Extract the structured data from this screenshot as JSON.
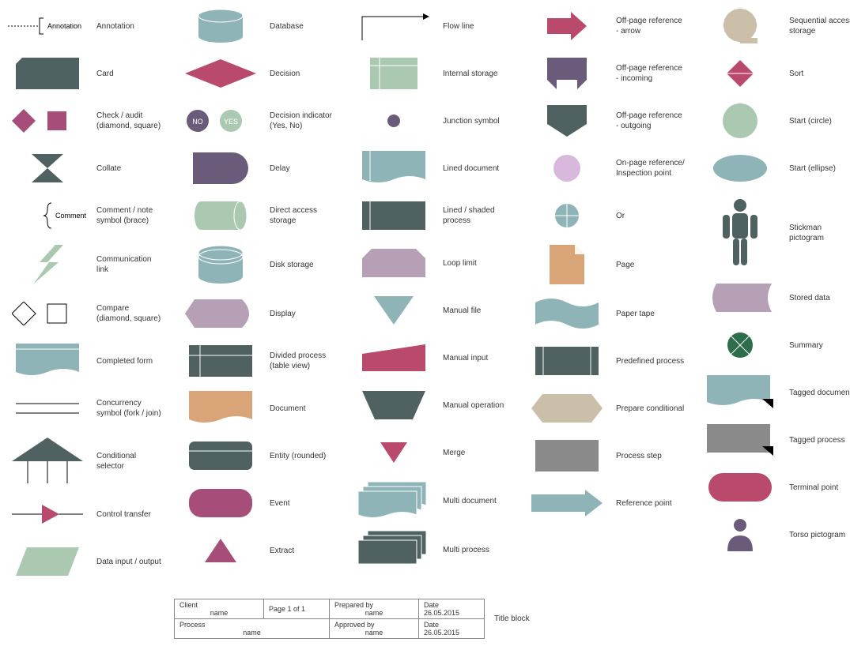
{
  "colors": {
    "darkgreen": "#4f6160",
    "teal": "#8fb4b7",
    "lightgreen": "#abc9b0",
    "magenta": "#a64d79",
    "crimson": "#b94a6b",
    "purple": "#6b5b7b",
    "mauve": "#b6a0b6",
    "tan": "#cbbfa9",
    "orange": "#d9a477",
    "grey": "#8a8a8a",
    "black": "#000",
    "deepgreen": "#2c6e49",
    "lilac": "#d8b8dd",
    "brown": "#8b5e3c"
  },
  "columns": [
    [
      {
        "label": "Annotation",
        "shape": "annotation"
      },
      {
        "label": "Card",
        "shape": "card",
        "color": "darkgreen"
      },
      {
        "label": "Check / audit\n(diamond, square)",
        "shape": "check",
        "color": "magenta"
      },
      {
        "label": "Collate",
        "shape": "collate",
        "color": "darkgreen"
      },
      {
        "label": "Comment /\nnote symbol (brace)",
        "shape": "brace"
      },
      {
        "label": "Communication link",
        "shape": "bolt",
        "color": "lightgreen"
      },
      {
        "label": "Compare\n(diamond, square)",
        "shape": "compare"
      },
      {
        "label": "Completed form",
        "shape": "completedform",
        "color": "teal"
      },
      {
        "label": "Concurrency symbol\n(fork / join)",
        "shape": "concurrency"
      },
      {
        "label": "Conditional selector",
        "shape": "condsel",
        "color": "darkgreen"
      },
      {
        "label": "Control transfer",
        "shape": "controltransfer",
        "color": "crimson"
      },
      {
        "label": "Data input / output",
        "shape": "parallelogram",
        "color": "lightgreen"
      }
    ],
    [
      {
        "label": "Database",
        "shape": "db",
        "color": "teal"
      },
      {
        "label": "Decision",
        "shape": "decision",
        "color": "crimson"
      },
      {
        "label": "Decision indicator\n(Yes, No)",
        "shape": "yesno"
      },
      {
        "label": "Delay",
        "shape": "delay",
        "color": "purple"
      },
      {
        "label": "Direct access storage",
        "shape": "hcyl",
        "color": "lightgreen"
      },
      {
        "label": "Disk storage",
        "shape": "disk",
        "color": "teal"
      },
      {
        "label": "Display",
        "shape": "display",
        "color": "mauve"
      },
      {
        "label": "Divided process\n(table view)",
        "shape": "divided",
        "color": "darkgreen"
      },
      {
        "label": "Document",
        "shape": "document",
        "color": "orange"
      },
      {
        "label": "Entity (rounded)",
        "shape": "entity",
        "color": "darkgreen"
      },
      {
        "label": "Event",
        "shape": "event",
        "color": "magenta"
      },
      {
        "label": "Extract",
        "shape": "extract",
        "color": "magenta"
      }
    ],
    [
      {
        "label": "Flow line",
        "shape": "flowline"
      },
      {
        "label": "Internal storage",
        "shape": "internal",
        "color": "lightgreen"
      },
      {
        "label": "Junction symbol",
        "shape": "junction",
        "color": "purple"
      },
      {
        "label": "Lined document",
        "shape": "lineddoc",
        "color": "teal"
      },
      {
        "label": "Lined / shaded process",
        "shape": "linedproc",
        "color": "darkgreen"
      },
      {
        "label": "Loop limit",
        "shape": "looplimit",
        "color": "mauve"
      },
      {
        "label": "Manual file",
        "shape": "manualfile",
        "color": "teal"
      },
      {
        "label": "Manual input",
        "shape": "manualinput",
        "color": "crimson"
      },
      {
        "label": "Manual operation",
        "shape": "manualop",
        "color": "darkgreen"
      },
      {
        "label": "Merge",
        "shape": "merge",
        "color": "crimson"
      },
      {
        "label": "Multi document",
        "shape": "multidoc",
        "color": "teal"
      },
      {
        "label": "Multi process",
        "shape": "multiproc",
        "color": "darkgreen"
      }
    ],
    [
      {
        "label": "Off-page reference -\narrow",
        "shape": "offarrow",
        "color": "crimson"
      },
      {
        "label": "Off-page reference -\nincoming",
        "shape": "offin",
        "color": "purple"
      },
      {
        "label": "Off-page reference -\noutgoing",
        "shape": "offout",
        "color": "darkgreen"
      },
      {
        "label": "On-page reference/\nInspection point",
        "shape": "onpage",
        "color": "lilac"
      },
      {
        "label": "Or",
        "shape": "or",
        "color": "teal"
      },
      {
        "label": "Page",
        "shape": "page",
        "color": "orange"
      },
      {
        "label": "Paper tape",
        "shape": "papertape",
        "color": "teal"
      },
      {
        "label": "Predefined process",
        "shape": "predef",
        "color": "darkgreen"
      },
      {
        "label": "Prepare conditional",
        "shape": "prepare",
        "color": "tan"
      },
      {
        "label": "Process step",
        "shape": "process",
        "color": "grey"
      },
      {
        "label": "Reference point",
        "shape": "refpoint",
        "color": "teal"
      }
    ],
    [
      {
        "label": "Sequential access\nstorage",
        "shape": "seqaccess",
        "color": "tan"
      },
      {
        "label": "Sort",
        "shape": "sort",
        "color": "crimson"
      },
      {
        "label": "Start (circle)",
        "shape": "startcircle",
        "color": "lightgreen"
      },
      {
        "label": "Start (ellipse)",
        "shape": "startellipse",
        "color": "teal"
      },
      {
        "label": "Stickman pictogram",
        "shape": "stickman",
        "color": "darkgreen"
      },
      {
        "label": "Stored data",
        "shape": "storeddata",
        "color": "mauve"
      },
      {
        "label": "Summary",
        "shape": "summary",
        "color": "deepgreen"
      },
      {
        "label": "Tagged document",
        "shape": "taggeddoc",
        "color": "teal"
      },
      {
        "label": "Tagged process",
        "shape": "taggedproc",
        "color": "grey"
      },
      {
        "label": "Terminal point",
        "shape": "terminal",
        "color": "crimson"
      },
      {
        "label": "Torso pictogram",
        "shape": "torso",
        "color": "purple"
      }
    ]
  ],
  "titleblock": {
    "label": "Title block",
    "client": "Client",
    "client_val": "name",
    "page": "Page 1  of  1",
    "prepared": "Prepared by",
    "prepared_val": "name",
    "date": "Date",
    "date_val": "26.05.2015",
    "process": "Process",
    "process_val": "name",
    "approved": "Approved by",
    "approved_val": "name"
  },
  "yesno": {
    "yes": "YES",
    "no": "NO"
  },
  "comment_text": "Comment",
  "annotation_text": "Annotation"
}
